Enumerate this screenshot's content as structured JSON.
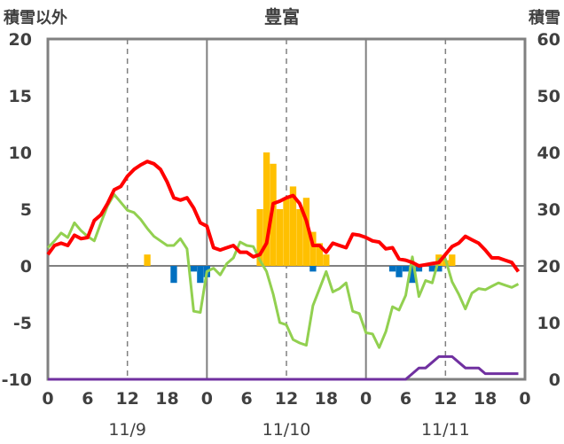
{
  "chart_data": {
    "type": "line",
    "title": "豊富",
    "left_axis": {
      "label": "積雪以外",
      "min": -10,
      "max": 20,
      "ticks": [
        -10,
        -5,
        0,
        5,
        10,
        15,
        20
      ]
    },
    "right_axis": {
      "label": "積雪",
      "min": 0,
      "max": 60,
      "ticks": [
        0,
        10,
        20,
        30,
        40,
        50,
        60
      ]
    },
    "x_tick_labels": [
      "0",
      "6",
      "12",
      "18",
      "0",
      "6",
      "12",
      "18",
      "0",
      "6",
      "12",
      "18",
      "0"
    ],
    "day_labels": [
      "11/9",
      "11/10",
      "11/11"
    ],
    "colors": {
      "red_line": "#ff0000",
      "green_line": "#92d050",
      "purple_line": "#7030a0",
      "orange_bar": "#ffc000",
      "blue_bar": "#0070c0",
      "axis": "#808080",
      "text": "#404040"
    },
    "series": [
      {
        "axis": "left",
        "kind": "line",
        "color": "#ff0000",
        "x": [
          0,
          1,
          2,
          3,
          4,
          5,
          6,
          7,
          8,
          9,
          10,
          11,
          12,
          13,
          14,
          15,
          16,
          17,
          18,
          19,
          20,
          21,
          22,
          23,
          24,
          25,
          26,
          27,
          28,
          29,
          30,
          31,
          32,
          33,
          34,
          35,
          36,
          37,
          38,
          39,
          40,
          41,
          42,
          43,
          44,
          45,
          46,
          47,
          48,
          49,
          50,
          51,
          52,
          53,
          54,
          55,
          56,
          57,
          58,
          59,
          60,
          61,
          62,
          63,
          64,
          65,
          66,
          67,
          68,
          69,
          70,
          71
        ],
        "y": [
          1.0,
          1.8,
          2.0,
          1.8,
          2.7,
          2.4,
          2.5,
          4.0,
          4.5,
          5.5,
          6.7,
          7.0,
          7.9,
          8.5,
          8.9,
          9.2,
          9.0,
          8.5,
          7.4,
          6.0,
          5.8,
          6.0,
          5.1,
          3.8,
          3.5,
          1.6,
          1.4,
          1.6,
          1.8,
          1.2,
          1.2,
          0.8,
          1.0,
          2.0,
          5.5,
          5.7,
          6.0,
          6.2,
          5.5,
          4.0,
          1.8,
          1.8,
          1.2,
          2.0,
          1.8,
          1.6,
          2.8,
          2.7,
          2.5,
          2.2,
          2.1,
          1.5,
          1.6,
          0.6,
          0.5,
          0.3,
          0.0,
          0.1,
          0.2,
          0.3,
          1.0,
          1.7,
          2.0,
          2.6,
          2.3,
          2.0,
          1.4,
          0.7,
          0.7,
          0.5,
          0.3,
          -0.5
        ]
      },
      {
        "axis": "left",
        "kind": "line",
        "color": "#92d050",
        "x": [
          0,
          1,
          2,
          3,
          4,
          5,
          6,
          7,
          8,
          9,
          10,
          11,
          12,
          13,
          14,
          15,
          16,
          17,
          18,
          19,
          20,
          21,
          22,
          23,
          24,
          25,
          26,
          27,
          28,
          29,
          30,
          31,
          32,
          33,
          34,
          35,
          36,
          37,
          38,
          39,
          40,
          41,
          42,
          43,
          44,
          45,
          46,
          47,
          48,
          49,
          50,
          51,
          52,
          53,
          54,
          55,
          56,
          57,
          58,
          59,
          60,
          61,
          62,
          63,
          64,
          65,
          66,
          67,
          68,
          69,
          70,
          71
        ],
        "y": [
          1.6,
          2.2,
          2.9,
          2.5,
          3.8,
          3.1,
          2.6,
          2.2,
          3.8,
          5.3,
          6.3,
          5.6,
          4.9,
          4.7,
          4.1,
          3.3,
          2.6,
          2.2,
          1.8,
          1.8,
          2.4,
          1.5,
          -4.0,
          -4.1,
          -0.5,
          -0.2,
          -0.8,
          0.2,
          0.7,
          2.1,
          1.8,
          1.7,
          0.5,
          -0.5,
          -2.5,
          -5.0,
          -5.2,
          -6.5,
          -6.8,
          -7.0,
          -3.5,
          -2.0,
          -0.5,
          -2.3,
          -2.0,
          -1.5,
          -4.0,
          -4.2,
          -5.9,
          -6.0,
          -7.2,
          -5.8,
          -3.6,
          -3.9,
          -2.6,
          0.8,
          -2.7,
          -1.3,
          -1.5,
          0.6,
          0.6,
          -1.4,
          -2.5,
          -3.8,
          -2.4,
          -2.0,
          -2.1,
          -1.8,
          -1.5,
          -1.7,
          -1.9,
          -1.6
        ]
      },
      {
        "axis": "right",
        "kind": "line",
        "color": "#7030a0",
        "x": [
          0,
          54,
          55,
          56,
          57,
          58,
          59,
          60,
          61,
          62,
          63,
          64,
          65,
          66,
          67,
          68,
          69,
          70,
          71
        ],
        "y": [
          0,
          0,
          1,
          2,
          2,
          3,
          4,
          4,
          4,
          3,
          2,
          2,
          2,
          1,
          1,
          1,
          1,
          1,
          1
        ]
      },
      {
        "axis": "left",
        "kind": "bar",
        "color": "#ffc000",
        "x": [
          15,
          32,
          33,
          34,
          35,
          36,
          37,
          38,
          39,
          40,
          41,
          42,
          59,
          60,
          61
        ],
        "y": [
          1.0,
          5.0,
          10.0,
          9.0,
          5.0,
          6.0,
          7.0,
          5.0,
          6.0,
          3.0,
          2.0,
          1.0,
          1.0,
          0.5,
          1.0
        ]
      },
      {
        "axis": "left",
        "kind": "bar",
        "color": "#0070c0",
        "x": [
          19,
          22,
          23,
          24,
          40,
          52,
          53,
          54,
          55,
          56,
          58,
          59
        ],
        "y": [
          -1.5,
          -0.5,
          -1.5,
          -1.0,
          -0.5,
          -0.5,
          -1.0,
          -0.5,
          -1.5,
          -0.5,
          -0.5,
          -0.5
        ]
      }
    ]
  }
}
